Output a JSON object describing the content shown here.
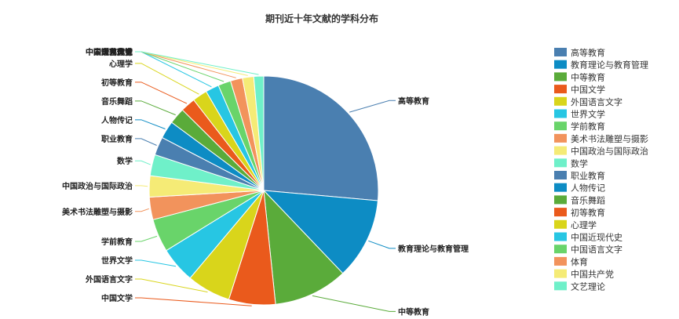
{
  "chart_data": {
    "type": "pie",
    "title": "期刊近十年文献的学科分布",
    "legend_position": "right",
    "slices": [
      {
        "name": "高等教育",
        "value": 26.5,
        "color": "#4a7fb0"
      },
      {
        "name": "教育理论与教育管理",
        "value": 11.5,
        "color": "#0d8cc4"
      },
      {
        "name": "中等教育",
        "value": 10.5,
        "color": "#5aab3a"
      },
      {
        "name": "中国文学",
        "value": 6.6,
        "color": "#ea5a1c"
      },
      {
        "name": "外国语言文字",
        "value": 6.2,
        "color": "#d9d51b"
      },
      {
        "name": "世界文学",
        "value": 5.1,
        "color": "#27c6e3"
      },
      {
        "name": "学前教育",
        "value": 4.7,
        "color": "#69d46a"
      },
      {
        "name": "美术书法雕塑与摄影",
        "value": 3.2,
        "color": "#f2935c"
      },
      {
        "name": "中国政治与国际政治",
        "value": 3.0,
        "color": "#f5eb76"
      },
      {
        "name": "数学",
        "value": 3.0,
        "color": "#6ff0c9"
      },
      {
        "name": "职业教育",
        "value": 2.6,
        "color": "#4a7fb0"
      },
      {
        "name": "人物传记",
        "value": 2.5,
        "color": "#0d8cc4"
      },
      {
        "name": "音乐舞蹈",
        "value": 2.3,
        "color": "#5aab3a"
      },
      {
        "name": "初等教育",
        "value": 2.1,
        "color": "#ea5a1c"
      },
      {
        "name": "心理学",
        "value": 2.1,
        "color": "#d9d51b"
      },
      {
        "name": "中国近现代史",
        "value": 1.9,
        "color": "#27c6e3"
      },
      {
        "name": "中国语言文字",
        "value": 1.8,
        "color": "#69d46a"
      },
      {
        "name": "体育",
        "value": 1.7,
        "color": "#f2935c"
      },
      {
        "name": "中国共产党",
        "value": 1.6,
        "color": "#f5eb76"
      },
      {
        "name": "文艺理论",
        "value": 1.4,
        "color": "#6ff0c9"
      }
    ]
  }
}
